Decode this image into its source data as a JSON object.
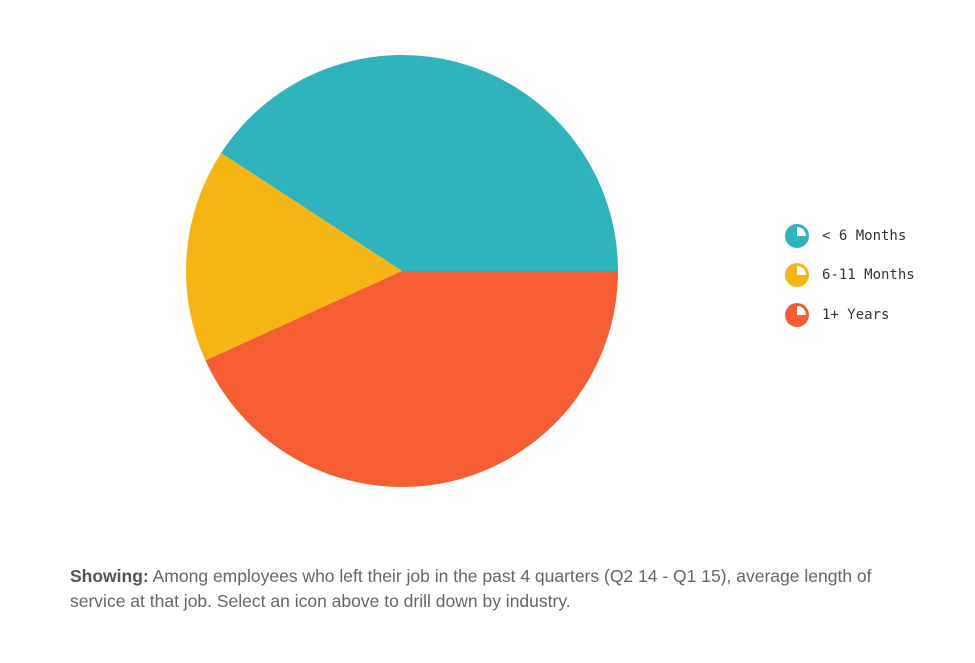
{
  "chart_data": {
    "type": "pie",
    "categories": [
      "< 6 Months",
      "6-11 Months",
      "1+ Years"
    ],
    "values": [
      40.8,
      16.0,
      43.2
    ],
    "unit": "percent of leavers (approx.)",
    "colors": [
      "#2fb3bc",
      "#f5b614",
      "#f55d33"
    ],
    "start_angle_deg": 0,
    "direction": "counterclockwise",
    "legend_position": "right"
  },
  "legend": {
    "items": [
      {
        "label": "< 6 Months",
        "color": "#2fb3bc",
        "icon": "pie-icon"
      },
      {
        "label": "6-11 Months",
        "color": "#f5b614",
        "icon": "pie-icon"
      },
      {
        "label": "1+ Years",
        "color": "#f55d33",
        "icon": "pie-icon"
      }
    ]
  },
  "caption": {
    "prefix": "Showing:",
    "text": " Among employees who left their job in the past 4 quarters (Q2 14 - Q1 15), average length of service at that job. Select an icon above to drill down by industry."
  }
}
